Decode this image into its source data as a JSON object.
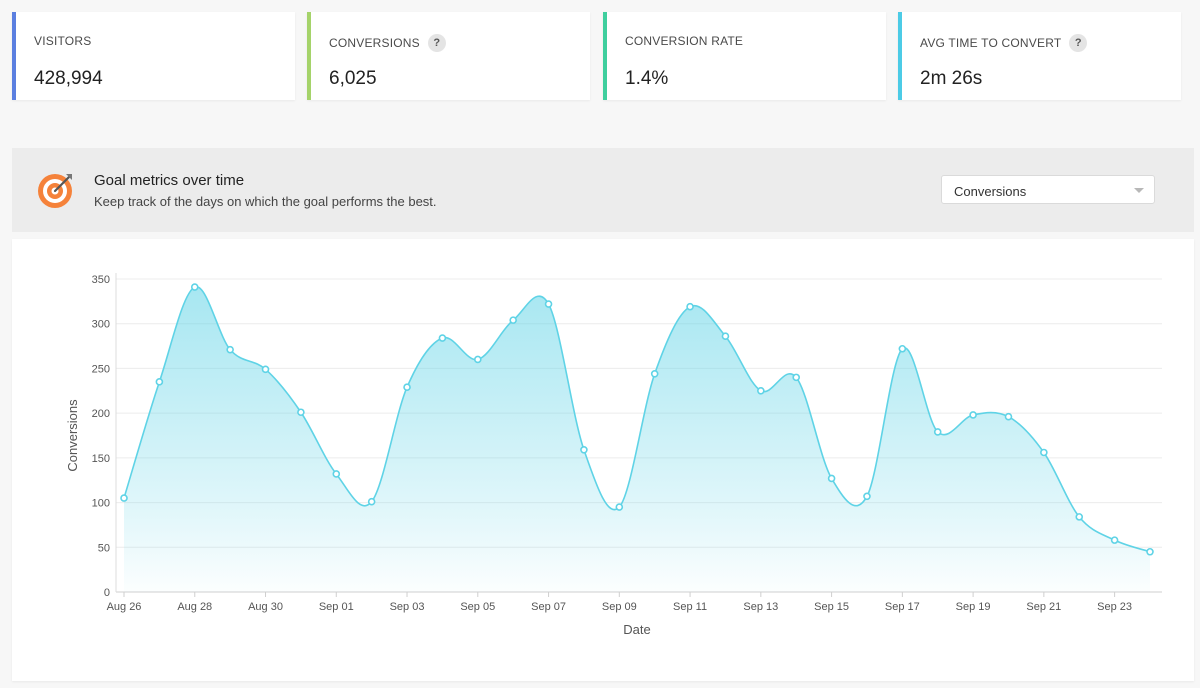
{
  "kpis": [
    {
      "label": "VISITORS",
      "value": "428,994",
      "color": "#5b7fe0",
      "help": false
    },
    {
      "label": "CONVERSIONS",
      "value": "6,025",
      "color": "#a5d36a",
      "help": true
    },
    {
      "label": "CONVERSION RATE",
      "value": "1.4%",
      "color": "#3fcf9e",
      "help": false
    },
    {
      "label": "AVG TIME TO CONVERT",
      "value": "2m 26s",
      "color": "#4ccbe6",
      "help": true
    }
  ],
  "help_glyph": "?",
  "goal": {
    "title": "Goal metrics over time",
    "subtitle": "Keep track of the days on which the goal performs the best.",
    "icon": "target-icon",
    "icon_color": "#f5823a"
  },
  "metric_select": {
    "value": "Conversions"
  },
  "chart_data": {
    "type": "area",
    "xlabel": "Date",
    "ylabel": "Conversions",
    "ylim": [
      0,
      350
    ],
    "yticks": [
      0,
      50,
      100,
      150,
      200,
      250,
      300,
      350
    ],
    "x": [
      "Aug 26",
      "Aug 27",
      "Aug 28",
      "Aug 29",
      "Aug 30",
      "Aug 31",
      "Sep 01",
      "Sep 02",
      "Sep 03",
      "Sep 04",
      "Sep 05",
      "Sep 06",
      "Sep 07",
      "Sep 08",
      "Sep 09",
      "Sep 10",
      "Sep 11",
      "Sep 12",
      "Sep 13",
      "Sep 14",
      "Sep 15",
      "Sep 16",
      "Sep 17",
      "Sep 18",
      "Sep 19",
      "Sep 20",
      "Sep 21",
      "Sep 22",
      "Sep 23",
      "Sep 24"
    ],
    "xtick_labels": [
      "Aug 26",
      "Aug 28",
      "Aug 30",
      "Sep 01",
      "Sep 03",
      "Sep 05",
      "Sep 07",
      "Sep 09",
      "Sep 11",
      "Sep 13",
      "Sep 15",
      "Sep 17",
      "Sep 19",
      "Sep 21",
      "Sep 23"
    ],
    "series": [
      {
        "values": [
          105,
          235,
          341,
          271,
          249,
          201,
          132,
          101,
          229,
          284,
          260,
          304,
          322,
          159,
          95,
          244,
          319,
          286,
          225,
          240,
          127,
          107,
          272,
          179,
          198,
          196,
          156,
          84,
          58,
          45
        ]
      }
    ],
    "color": "#5fd3e6",
    "grid": true
  }
}
